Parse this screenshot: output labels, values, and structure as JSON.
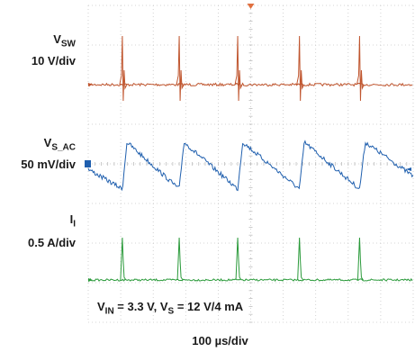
{
  "chart_data": {
    "type": "line",
    "title": "",
    "xlabel": "100 µs/div",
    "grid": true,
    "divisions": {
      "x": 10,
      "y": 8
    },
    "time_per_div_us": 100,
    "channels": [
      {
        "name": "VSW",
        "label_main": "V",
        "label_sub": "SW",
        "scale": "10 V/div",
        "color": "#c0562f",
        "spike_times_div": [
          1.05,
          2.8,
          4.6,
          6.5,
          8.35
        ]
      },
      {
        "name": "VS_AC",
        "label_main": "V",
        "label_sub": "S_AC",
        "scale": "50 mV/div",
        "color": "#1f5fae",
        "ramp_starts_div": [
          1.05,
          2.8,
          4.6,
          6.5,
          8.35
        ],
        "ramp_amplitude_mV": 50
      },
      {
        "name": "II",
        "label_main": "I",
        "label_sub": "I",
        "scale": "0.5 A/div",
        "color": "#2a9a3a",
        "spike_times_div": [
          1.05,
          2.8,
          4.6,
          6.5,
          8.35
        ]
      }
    ],
    "conditions": {
      "vin_main": "V",
      "vin_sub": "IN",
      "vin_value": " = 3.3 V, V",
      "vs_sub": "S",
      "vs_value": " = 12 V/4 mA"
    }
  }
}
